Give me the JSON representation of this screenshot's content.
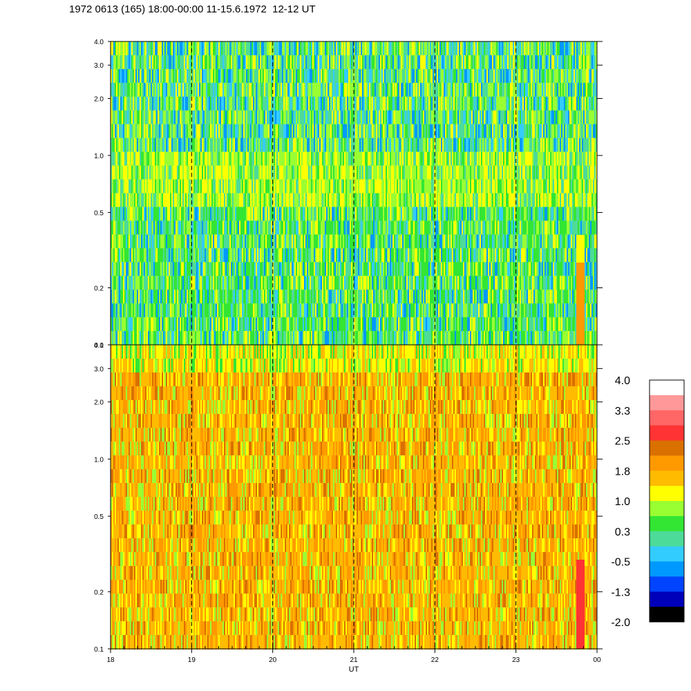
{
  "header": {
    "title": "1972 0613 (165) 18:00-00:00 11-15.6.1972  12-12 UT"
  },
  "chart_data": {
    "type": "heatmap",
    "title": "1972 0613 (165) 18:00-00:00 11-15.6.1972  12-12 UT",
    "xlabel": "UT",
    "x_ticks": [
      "18",
      "19",
      "20",
      "21",
      "22",
      "23",
      "00"
    ],
    "x_range_hours": [
      18,
      24
    ],
    "y_scale": "log",
    "y_ticks": [
      "0.1",
      "0.2",
      "0.5",
      "1.0",
      "2.0",
      "3.0",
      "4.0"
    ],
    "y_tick_values": [
      0.1,
      0.2,
      0.5,
      1.0,
      2.0,
      3.0,
      4.0
    ],
    "y_range": [
      0.1,
      4.0
    ],
    "dashed_vertical_lines_hours": [
      19,
      20,
      21,
      22,
      23
    ],
    "panels": [
      {
        "name": "upper",
        "typical_level": 0.3,
        "description_levels": "green/teal/cyan dominant"
      },
      {
        "name": "lower",
        "typical_level": 1.8,
        "description_levels": "orange/yellow dominant"
      }
    ],
    "colorbar": {
      "labels": [
        "4.0",
        "3.3",
        "2.5",
        "1.8",
        "1.0",
        "0.3",
        "-0.5",
        "-1.3",
        "-2.0"
      ],
      "colors": [
        "#ffffff",
        "#ff9999",
        "#ff6666",
        "#ff3333",
        "#d97000",
        "#ff9900",
        "#ffbb00",
        "#ffff00",
        "#99ff33",
        "#33e633",
        "#4ddb99",
        "#33ccff",
        "#0099ff",
        "#0044ff",
        "#0000bb",
        "#000000"
      ]
    }
  }
}
